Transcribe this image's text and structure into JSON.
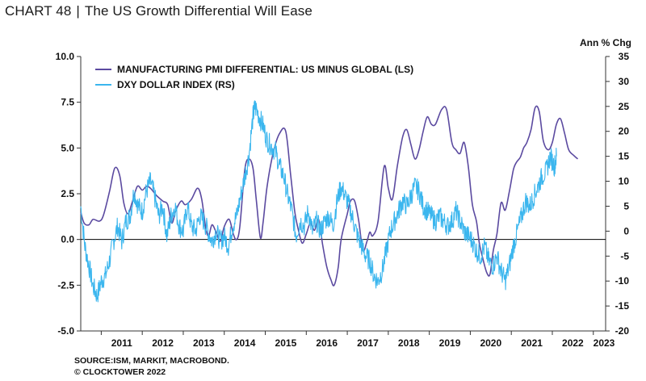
{
  "header": {
    "chart_number": "CHART 48",
    "separator": "|",
    "title": "The US Growth Differential Will Ease"
  },
  "footer": {
    "source": "SOURCE:ISM, MARKIT, MACROBOND.",
    "copyright": "© CLOCKTOWER 2022"
  },
  "colors": {
    "pmi_series": "#5b4aa0",
    "dxy_series": "#3bb6ee",
    "axis": "#333333",
    "zero_line": "#000000"
  },
  "chart_data": {
    "type": "line",
    "right_axis_unit": "Ann % Chg",
    "x_tick_labels": [
      "2011",
      "2012",
      "2013",
      "2014",
      "2015",
      "2016",
      "2017",
      "2018",
      "2019",
      "2020",
      "2021",
      "2022",
      "2023"
    ],
    "xlim": [
      2010.5,
      2023.3
    ],
    "left_axis": {
      "ylim": [
        -5.0,
        10.0
      ],
      "ticks": [
        "10.0",
        "7.5",
        "5.0",
        "2.5",
        "0.0",
        "-2.5",
        "-5.0"
      ]
    },
    "right_axis": {
      "ylim": [
        -20,
        35
      ],
      "ticks": [
        "35",
        "30",
        "25",
        "20",
        "15",
        "10",
        "5",
        "0",
        "-5",
        "-10",
        "-15",
        "-20"
      ]
    },
    "legend_position": "top-left",
    "grid": false,
    "series": [
      {
        "name": "MANUFACTURING PMI DIFFERENTIAL: US MINUS GLOBAL (LS)",
        "axis": "left",
        "points": [
          [
            2010.5,
            1.5
          ],
          [
            2010.58,
            0.9
          ],
          [
            2010.7,
            0.8
          ],
          [
            2010.8,
            1.1
          ],
          [
            2010.95,
            1.0
          ],
          [
            2011.05,
            1.3
          ],
          [
            2011.2,
            2.6
          ],
          [
            2011.33,
            3.9
          ],
          [
            2011.45,
            3.5
          ],
          [
            2011.55,
            2.0
          ],
          [
            2011.65,
            1.4
          ],
          [
            2011.75,
            2.0
          ],
          [
            2011.88,
            2.9
          ],
          [
            2012.0,
            2.7
          ],
          [
            2012.1,
            2.9
          ],
          [
            2012.2,
            2.8
          ],
          [
            2012.35,
            2.4
          ],
          [
            2012.5,
            2.1
          ],
          [
            2012.62,
            1.9
          ],
          [
            2012.72,
            0.9
          ],
          [
            2012.82,
            1.6
          ],
          [
            2012.95,
            2.1
          ],
          [
            2013.05,
            1.9
          ],
          [
            2013.2,
            2.2
          ],
          [
            2013.35,
            2.8
          ],
          [
            2013.45,
            2.2
          ],
          [
            2013.55,
            0.6
          ],
          [
            2013.62,
            0.2
          ],
          [
            2013.7,
            0.8
          ],
          [
            2013.8,
            0.4
          ],
          [
            2013.9,
            -0.1
          ],
          [
            2014.0,
            0.7
          ],
          [
            2014.12,
            1.1
          ],
          [
            2014.22,
            0.3
          ],
          [
            2014.3,
            0.0
          ],
          [
            2014.38,
            0.7
          ],
          [
            2014.5,
            3.8
          ],
          [
            2014.6,
            4.4
          ],
          [
            2014.7,
            3.9
          ],
          [
            2014.78,
            2.2
          ],
          [
            2014.88,
            0.1
          ],
          [
            2014.95,
            1.0
          ],
          [
            2015.05,
            3.0
          ],
          [
            2015.2,
            4.8
          ],
          [
            2015.35,
            5.8
          ],
          [
            2015.5,
            5.9
          ],
          [
            2015.62,
            3.5
          ],
          [
            2015.72,
            1.5
          ],
          [
            2015.8,
            0.6
          ],
          [
            2015.9,
            -0.2
          ],
          [
            2016.0,
            0.3
          ],
          [
            2016.1,
            0.9
          ],
          [
            2016.2,
            0.5
          ],
          [
            2016.3,
            1.1
          ],
          [
            2016.4,
            -0.3
          ],
          [
            2016.5,
            -1.5
          ],
          [
            2016.6,
            -2.2
          ],
          [
            2016.68,
            -2.5
          ],
          [
            2016.78,
            -1.5
          ],
          [
            2016.85,
            0.0
          ],
          [
            2017.0,
            1.4
          ],
          [
            2017.08,
            2.1
          ],
          [
            2017.18,
            2.1
          ],
          [
            2017.28,
            1.0
          ],
          [
            2017.38,
            -0.6
          ],
          [
            2017.48,
            -0.1
          ],
          [
            2017.55,
            0.4
          ],
          [
            2017.62,
            0.2
          ],
          [
            2017.75,
            1.0
          ],
          [
            2017.9,
            4.0
          ],
          [
            2018.0,
            2.8
          ],
          [
            2018.1,
            2.2
          ],
          [
            2018.22,
            4.0
          ],
          [
            2018.35,
            5.6
          ],
          [
            2018.45,
            6.0
          ],
          [
            2018.55,
            5.2
          ],
          [
            2018.65,
            4.4
          ],
          [
            2018.75,
            4.9
          ],
          [
            2018.85,
            5.9
          ],
          [
            2018.95,
            6.7
          ],
          [
            2019.05,
            6.3
          ],
          [
            2019.15,
            6.3
          ],
          [
            2019.3,
            7.1
          ],
          [
            2019.42,
            7.1
          ],
          [
            2019.55,
            5.3
          ],
          [
            2019.65,
            4.9
          ],
          [
            2019.75,
            4.7
          ],
          [
            2019.85,
            5.3
          ],
          [
            2019.95,
            4.0
          ],
          [
            2020.05,
            1.9
          ],
          [
            2020.15,
            1.0
          ],
          [
            2020.22,
            -0.2
          ],
          [
            2020.3,
            -1.0
          ],
          [
            2020.4,
            -1.8
          ],
          [
            2020.48,
            -1.9
          ],
          [
            2020.56,
            -0.6
          ],
          [
            2020.65,
            0.3
          ],
          [
            2020.75,
            2.0
          ],
          [
            2020.85,
            1.6
          ],
          [
            2020.95,
            2.6
          ],
          [
            2021.05,
            3.8
          ],
          [
            2021.12,
            4.2
          ],
          [
            2021.22,
            4.5
          ],
          [
            2021.3,
            5.0
          ],
          [
            2021.38,
            5.3
          ],
          [
            2021.48,
            6.0
          ],
          [
            2021.58,
            7.2
          ],
          [
            2021.68,
            7.0
          ],
          [
            2021.78,
            5.4
          ],
          [
            2021.9,
            4.9
          ],
          [
            2022.0,
            5.3
          ],
          [
            2022.1,
            6.3
          ],
          [
            2022.2,
            6.6
          ],
          [
            2022.3,
            5.8
          ],
          [
            2022.4,
            4.9
          ],
          [
            2022.52,
            4.6
          ],
          [
            2022.62,
            4.4
          ]
        ]
      },
      {
        "name": "DXY DOLLAR INDEX (RS)",
        "axis": "right",
        "points": [
          [
            2010.5,
            5
          ],
          [
            2010.6,
            -3
          ],
          [
            2010.7,
            -7
          ],
          [
            2010.8,
            -11
          ],
          [
            2010.9,
            -13
          ],
          [
            2011.0,
            -10
          ],
          [
            2011.1,
            -9
          ],
          [
            2011.2,
            -6
          ],
          [
            2011.3,
            -2
          ],
          [
            2011.4,
            1
          ],
          [
            2011.5,
            -2
          ],
          [
            2011.6,
            2
          ],
          [
            2011.7,
            3
          ],
          [
            2011.8,
            8
          ],
          [
            2011.9,
            5
          ],
          [
            2012.0,
            4
          ],
          [
            2012.1,
            8
          ],
          [
            2012.2,
            10
          ],
          [
            2012.3,
            7
          ],
          [
            2012.4,
            3
          ],
          [
            2012.5,
            5
          ],
          [
            2012.6,
            -1
          ],
          [
            2012.7,
            3
          ],
          [
            2012.8,
            5
          ],
          [
            2012.9,
            1
          ],
          [
            2013.0,
            0
          ],
          [
            2013.1,
            5
          ],
          [
            2013.2,
            1
          ],
          [
            2013.3,
            0
          ],
          [
            2013.4,
            3
          ],
          [
            2013.5,
            2
          ],
          [
            2013.6,
            0
          ],
          [
            2013.7,
            -2
          ],
          [
            2013.8,
            0
          ],
          [
            2013.9,
            -2
          ],
          [
            2014.0,
            -1
          ],
          [
            2014.1,
            -3
          ],
          [
            2014.2,
            1
          ],
          [
            2014.3,
            3
          ],
          [
            2014.4,
            7
          ],
          [
            2014.5,
            11
          ],
          [
            2014.6,
            15
          ],
          [
            2014.7,
            23
          ],
          [
            2014.75,
            25
          ],
          [
            2014.85,
            23
          ],
          [
            2014.95,
            21
          ],
          [
            2015.05,
            18
          ],
          [
            2015.15,
            17
          ],
          [
            2015.25,
            16
          ],
          [
            2015.35,
            13
          ],
          [
            2015.45,
            11
          ],
          [
            2015.55,
            7
          ],
          [
            2015.65,
            4
          ],
          [
            2015.75,
            -1
          ],
          [
            2015.85,
            2
          ],
          [
            2015.95,
            1
          ],
          [
            2016.05,
            4
          ],
          [
            2016.15,
            0
          ],
          [
            2016.25,
            2
          ],
          [
            2016.35,
            0
          ],
          [
            2016.45,
            2
          ],
          [
            2016.55,
            3
          ],
          [
            2016.65,
            1
          ],
          [
            2016.75,
            6
          ],
          [
            2016.85,
            9
          ],
          [
            2016.95,
            7
          ],
          [
            2017.05,
            5
          ],
          [
            2017.15,
            2
          ],
          [
            2017.25,
            -1
          ],
          [
            2017.35,
            -3
          ],
          [
            2017.45,
            -5
          ],
          [
            2017.55,
            -6
          ],
          [
            2017.65,
            -9
          ],
          [
            2017.75,
            -10
          ],
          [
            2017.85,
            -8
          ],
          [
            2017.95,
            -4
          ],
          [
            2018.05,
            0
          ],
          [
            2018.15,
            2
          ],
          [
            2018.25,
            4
          ],
          [
            2018.35,
            6
          ],
          [
            2018.45,
            5
          ],
          [
            2018.55,
            7
          ],
          [
            2018.65,
            9
          ],
          [
            2018.75,
            8
          ],
          [
            2018.85,
            5
          ],
          [
            2018.95,
            4
          ],
          [
            2019.05,
            3
          ],
          [
            2019.15,
            2
          ],
          [
            2019.25,
            3
          ],
          [
            2019.35,
            2
          ],
          [
            2019.45,
            1
          ],
          [
            2019.55,
            2
          ],
          [
            2019.65,
            4
          ],
          [
            2019.75,
            2
          ],
          [
            2019.85,
            0
          ],
          [
            2019.95,
            -1
          ],
          [
            2020.05,
            -2
          ],
          [
            2020.15,
            -4
          ],
          [
            2020.25,
            -5
          ],
          [
            2020.35,
            -3
          ],
          [
            2020.45,
            -6
          ],
          [
            2020.55,
            -7
          ],
          [
            2020.65,
            -5
          ],
          [
            2020.75,
            -8
          ],
          [
            2020.85,
            -10
          ],
          [
            2020.95,
            -7
          ],
          [
            2021.05,
            -3
          ],
          [
            2021.15,
            0
          ],
          [
            2021.25,
            3
          ],
          [
            2021.35,
            6
          ],
          [
            2021.45,
            5
          ],
          [
            2021.55,
            7
          ],
          [
            2021.65,
            9
          ],
          [
            2021.75,
            11
          ],
          [
            2021.85,
            12
          ],
          [
            2021.95,
            15
          ],
          [
            2022.05,
            13
          ],
          [
            2022.1,
            15
          ]
        ]
      }
    ]
  }
}
